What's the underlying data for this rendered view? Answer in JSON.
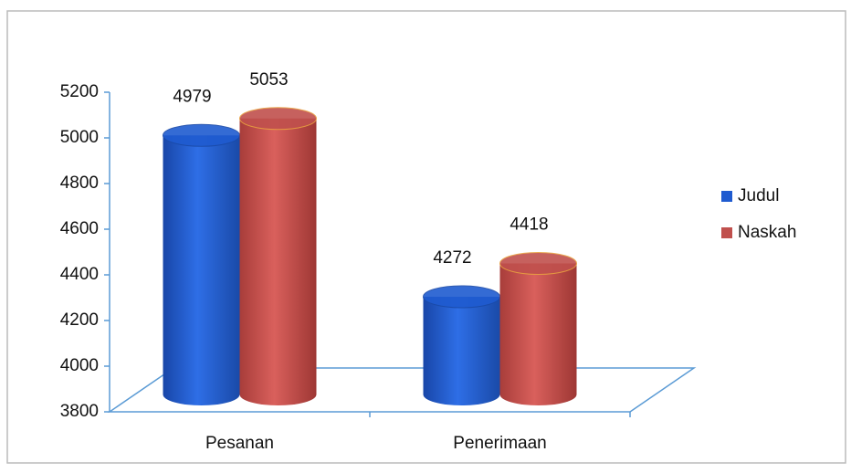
{
  "chart_data": {
    "type": "bar3d",
    "categories": [
      "Pesanan",
      "Penerimaan"
    ],
    "series": [
      {
        "name": "Judul",
        "color": "#1f5bd0",
        "values": [
          4979,
          4272
        ]
      },
      {
        "name": "Naskah",
        "color": "#c0504d",
        "values": [
          5053,
          4418
        ]
      }
    ],
    "ylim": [
      3800,
      5200
    ],
    "yticks": [
      3800,
      4000,
      4200,
      4400,
      4600,
      4800,
      5000,
      5200
    ],
    "legend": "right"
  }
}
